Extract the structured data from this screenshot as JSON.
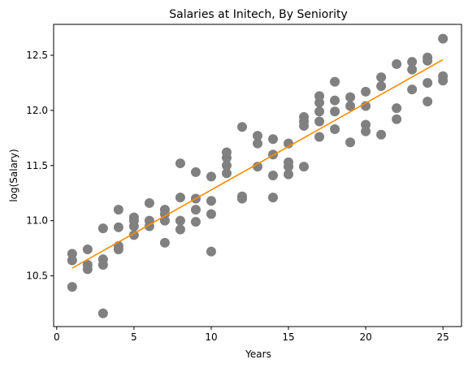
{
  "chart_data": {
    "type": "scatter",
    "title": "Salaries at Initech, By Seniority",
    "xlabel": "Years",
    "ylabel": "log(Salary)",
    "xlim": [
      -0.2,
      26.2
    ],
    "ylim": [
      10.04,
      12.78
    ],
    "xticks": [
      0,
      5,
      10,
      15,
      20,
      25
    ],
    "yticks": [
      10.5,
      11.0,
      11.5,
      12.0,
      12.5
    ],
    "ytick_labels": [
      "10.5",
      "11.0",
      "11.5",
      "12.0",
      "12.5"
    ],
    "grid": false,
    "legend": "none",
    "series": [
      {
        "type": "scatter",
        "color": "#808080",
        "points": [
          [
            1,
            10.7
          ],
          [
            1,
            10.64
          ],
          [
            1,
            10.4
          ],
          [
            2,
            10.74
          ],
          [
            2,
            10.6
          ],
          [
            2,
            10.56
          ],
          [
            3,
            10.93
          ],
          [
            3,
            10.65
          ],
          [
            3,
            10.6
          ],
          [
            3,
            10.16
          ],
          [
            4,
            11.1
          ],
          [
            4,
            10.94
          ],
          [
            4,
            10.77
          ],
          [
            4,
            10.74
          ],
          [
            5,
            11.03
          ],
          [
            5,
            11.0
          ],
          [
            5,
            10.95
          ],
          [
            5,
            10.87
          ],
          [
            6,
            11.16
          ],
          [
            6,
            11.0
          ],
          [
            6,
            10.95
          ],
          [
            7,
            11.1
          ],
          [
            7,
            11.06
          ],
          [
            7,
            11.0
          ],
          [
            7,
            10.8
          ],
          [
            8,
            11.52
          ],
          [
            8,
            11.21
          ],
          [
            8,
            11.0
          ],
          [
            8,
            10.92
          ],
          [
            9,
            11.44
          ],
          [
            9,
            11.2
          ],
          [
            9,
            11.1
          ],
          [
            9,
            10.99
          ],
          [
            10,
            11.4
          ],
          [
            10,
            11.18
          ],
          [
            10,
            11.06
          ],
          [
            10,
            10.72
          ],
          [
            11,
            11.62
          ],
          [
            11,
            11.57
          ],
          [
            11,
            11.5
          ],
          [
            11,
            11.43
          ],
          [
            12,
            11.85
          ],
          [
            12,
            11.22
          ],
          [
            12,
            11.2
          ],
          [
            13,
            11.77
          ],
          [
            13,
            11.7
          ],
          [
            13,
            11.49
          ],
          [
            14,
            11.74
          ],
          [
            14,
            11.6
          ],
          [
            14,
            11.41
          ],
          [
            14,
            11.21
          ],
          [
            15,
            11.7
          ],
          [
            15,
            11.53
          ],
          [
            15,
            11.49
          ],
          [
            15,
            11.42
          ],
          [
            16,
            11.94
          ],
          [
            16,
            11.9
          ],
          [
            16,
            11.86
          ],
          [
            16,
            11.49
          ],
          [
            17,
            12.13
          ],
          [
            17,
            12.07
          ],
          [
            17,
            11.99
          ],
          [
            17,
            11.9
          ],
          [
            17,
            11.76
          ],
          [
            18,
            12.26
          ],
          [
            18,
            12.09
          ],
          [
            18,
            11.99
          ],
          [
            18,
            11.83
          ],
          [
            19,
            12.12
          ],
          [
            19,
            12.04
          ],
          [
            19,
            11.71
          ],
          [
            20,
            12.17
          ],
          [
            20,
            12.04
          ],
          [
            20,
            11.87
          ],
          [
            20,
            11.81
          ],
          [
            21,
            12.3
          ],
          [
            21,
            12.22
          ],
          [
            21,
            11.78
          ],
          [
            22,
            12.42
          ],
          [
            22,
            12.02
          ],
          [
            22,
            11.92
          ],
          [
            23,
            12.44
          ],
          [
            23,
            12.37
          ],
          [
            23,
            12.19
          ],
          [
            24,
            12.48
          ],
          [
            24,
            12.45
          ],
          [
            24,
            12.25
          ],
          [
            24,
            12.08
          ],
          [
            25,
            12.65
          ],
          [
            25,
            12.31
          ],
          [
            25,
            12.27
          ]
        ]
      },
      {
        "type": "line",
        "color": "#ff8c00",
        "points": [
          [
            1,
            10.57
          ],
          [
            25,
            12.46
          ]
        ]
      }
    ]
  }
}
